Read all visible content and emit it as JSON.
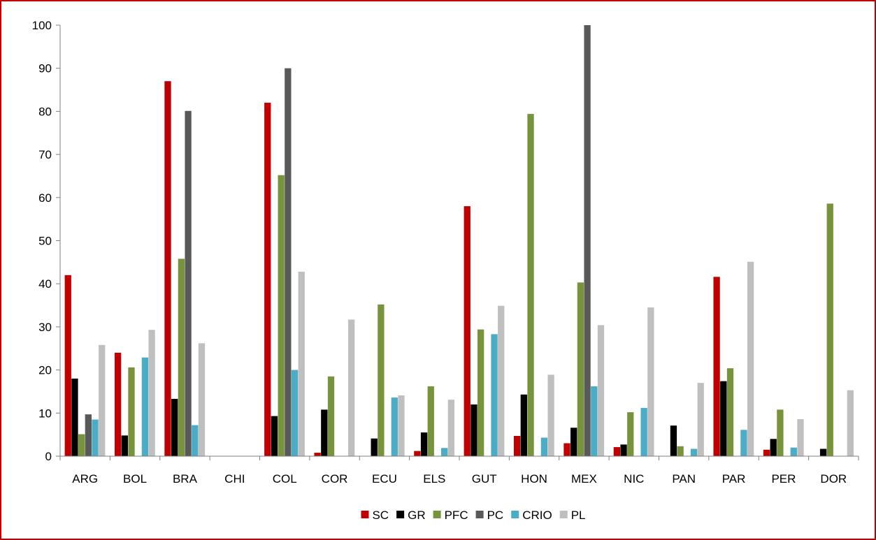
{
  "chart_data": {
    "type": "bar",
    "title": "",
    "xlabel": "",
    "ylabel": "",
    "ylim": [
      0,
      100
    ],
    "yticks": [
      "0",
      "10",
      "20",
      "30",
      "40",
      "50",
      "60",
      "70",
      "80",
      "90",
      "100"
    ],
    "categories": [
      "ARG",
      "BOL",
      "BRA",
      "CHI",
      "COL",
      "COR",
      "ECU",
      "ELS",
      "GUT",
      "HON",
      "MEX",
      "NIC",
      "PAN",
      "PAR",
      "PER",
      "DOR"
    ],
    "legend_position": "bottom",
    "grid": false,
    "series": [
      {
        "name": "SC",
        "color": "#c00000",
        "values": [
          42,
          24,
          87,
          0,
          82,
          0.8,
          0,
          1.2,
          58,
          4.7,
          3,
          2.1,
          0,
          41.6,
          1.5,
          0
        ]
      },
      {
        "name": "GR",
        "color": "#000000",
        "values": [
          18,
          4.8,
          13.3,
          0,
          9.3,
          10.8,
          4.1,
          5.5,
          12,
          14.3,
          6.6,
          2.7,
          7.1,
          17.4,
          4,
          1.7
        ]
      },
      {
        "name": "PFC",
        "color": "#77933c",
        "values": [
          5.1,
          20.6,
          45.8,
          0,
          65.2,
          18.5,
          35.2,
          16.2,
          29.4,
          79.4,
          40.3,
          10.2,
          2.3,
          20.4,
          10.8,
          58.6
        ]
      },
      {
        "name": "PC",
        "color": "#595959",
        "values": [
          9.7,
          0,
          80.1,
          0,
          90,
          0,
          0,
          0,
          0,
          0,
          100,
          0,
          0,
          0,
          0,
          0
        ]
      },
      {
        "name": "CRIO",
        "color": "#4bacc6",
        "values": [
          8.5,
          22.9,
          7.2,
          0,
          20,
          0,
          13.6,
          1.9,
          28.3,
          4.3,
          16.2,
          11.2,
          1.7,
          6.1,
          2,
          0
        ]
      },
      {
        "name": "PL",
        "color": "#bfbfbf",
        "values": [
          25.8,
          29.3,
          26.2,
          0,
          42.8,
          31.7,
          14.1,
          13.1,
          34.9,
          18.9,
          30.4,
          34.5,
          17,
          45.1,
          8.6,
          15.3
        ]
      }
    ]
  }
}
